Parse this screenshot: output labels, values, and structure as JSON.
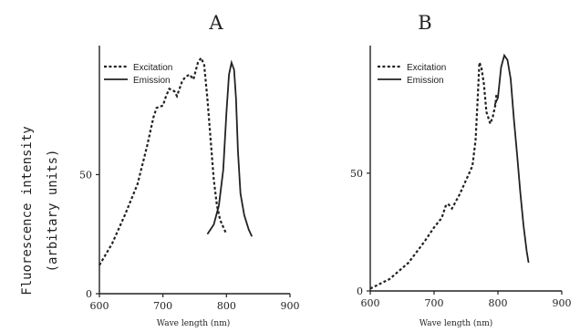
{
  "ylabel_line1": "Fluorescence intensity",
  "ylabel_line2": "(arbitary units)",
  "colors": {
    "ink": "#222222",
    "background": "#ffffff"
  },
  "chart_data": [
    {
      "type": "line",
      "title": "A",
      "xlabel": "Wave length (nm)",
      "ylabel": "Fluorescence intensity (arbitary units)",
      "xlim": [
        600,
        900
      ],
      "ylim": [
        0,
        100
      ],
      "xticks": [
        "600",
        "700",
        "800",
        "900"
      ],
      "yticks": [
        "0",
        "50"
      ],
      "legend": "top-left",
      "grid": false,
      "series": [
        {
          "name": "Excitation",
          "style": "dotted",
          "points": [
            [
              600,
              12
            ],
            [
              620,
              21
            ],
            [
              640,
              33
            ],
            [
              660,
              46
            ],
            [
              675,
              62
            ],
            [
              685,
              74
            ],
            [
              690,
              78
            ],
            [
              700,
              79
            ],
            [
              705,
              83
            ],
            [
              710,
              86
            ],
            [
              718,
              85
            ],
            [
              722,
              83
            ],
            [
              730,
              89
            ],
            [
              735,
              91
            ],
            [
              742,
              92
            ],
            [
              748,
              90
            ],
            [
              755,
              97
            ],
            [
              760,
              99
            ],
            [
              765,
              96
            ],
            [
              770,
              82
            ],
            [
              775,
              65
            ],
            [
              780,
              48
            ],
            [
              785,
              37
            ],
            [
              790,
              31
            ],
            [
              795,
              28
            ],
            [
              800,
              25
            ]
          ]
        },
        {
          "name": "Emission",
          "style": "solid",
          "points": [
            [
              770,
              25
            ],
            [
              780,
              29
            ],
            [
              788,
              37
            ],
            [
              795,
              52
            ],
            [
              800,
              76
            ],
            [
              804,
              92
            ],
            [
              808,
              97
            ],
            [
              812,
              94
            ],
            [
              815,
              82
            ],
            [
              818,
              60
            ],
            [
              822,
              42
            ],
            [
              828,
              33
            ],
            [
              835,
              27
            ],
            [
              840,
              24
            ]
          ]
        }
      ]
    },
    {
      "type": "line",
      "title": "B",
      "xlabel": "Wave length (nm)",
      "ylabel": "Fluorescence intensity (arbitary units)",
      "xlim": [
        600,
        900
      ],
      "ylim": [
        0,
        100
      ],
      "xticks": [
        "600",
        "700",
        "800",
        "900"
      ],
      "yticks": [
        "0",
        "50"
      ],
      "legend": "top-left",
      "grid": false,
      "series": [
        {
          "name": "Excitation",
          "style": "dotted",
          "points": [
            [
              600,
              1
            ],
            [
              630,
              5
            ],
            [
              660,
              12
            ],
            [
              685,
              21
            ],
            [
              700,
              27
            ],
            [
              712,
              31
            ],
            [
              718,
              36
            ],
            [
              722,
              37
            ],
            [
              728,
              35
            ],
            [
              732,
              37
            ],
            [
              740,
              41
            ],
            [
              750,
              47
            ],
            [
              760,
              53
            ],
            [
              765,
              64
            ],
            [
              768,
              80
            ],
            [
              771,
              97
            ],
            [
              774,
              95
            ],
            [
              778,
              88
            ],
            [
              782,
              76
            ],
            [
              788,
              71
            ],
            [
              792,
              74
            ],
            [
              796,
              79
            ],
            [
              798,
              84
            ]
          ]
        },
        {
          "name": "Emission",
          "style": "solid",
          "points": [
            [
              795,
              79
            ],
            [
              800,
              82
            ],
            [
              805,
              95
            ],
            [
              810,
              100
            ],
            [
              815,
              98
            ],
            [
              820,
              90
            ],
            [
              825,
              73
            ],
            [
              830,
              58
            ],
            [
              835,
              42
            ],
            [
              840,
              28
            ],
            [
              845,
              17
            ],
            [
              848,
              12
            ]
          ]
        }
      ]
    }
  ]
}
